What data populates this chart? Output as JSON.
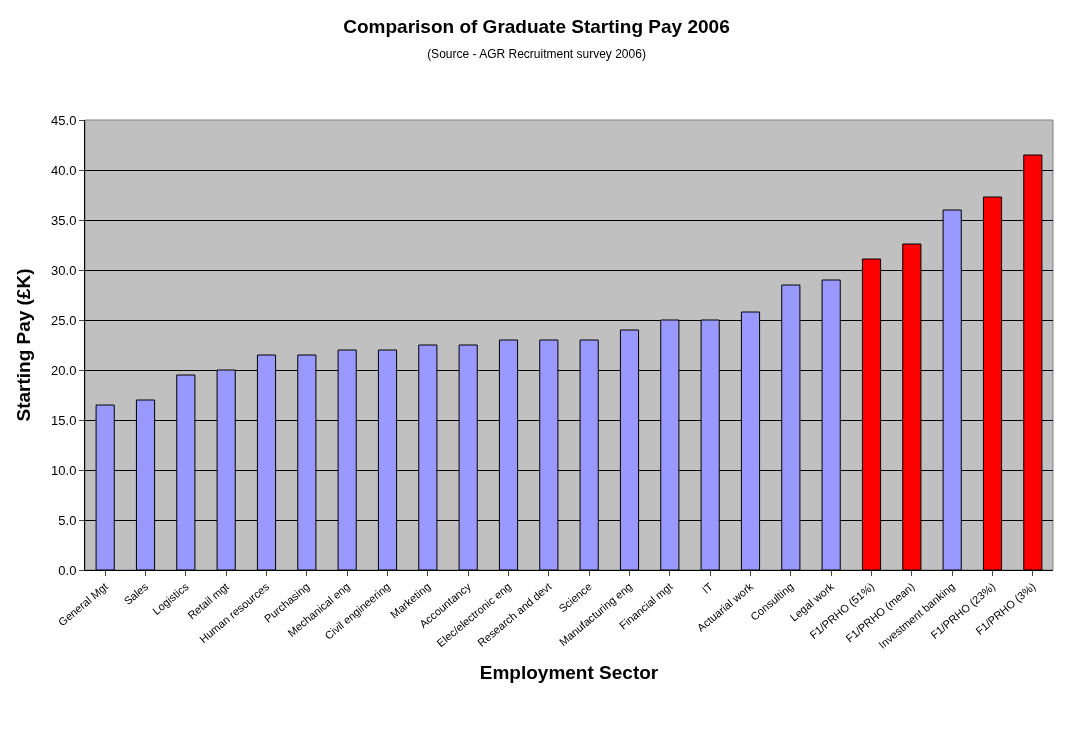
{
  "chart_data": {
    "type": "bar",
    "title": "Comparison of Graduate Starting Pay 2006",
    "subtitle": "(Source - AGR Recruitment survey 2006)",
    "xlabel": "Employment Sector",
    "ylabel": "Starting Pay (£K)",
    "categories": [
      "General Mgt",
      "Sales",
      "Logistics",
      "Retail mgt",
      "Human resources",
      "Purchasing",
      "Mechanical eng",
      "Civil engineering",
      "Marketing",
      "Accountancy",
      "Elec/electronic eng",
      "Research and devt",
      "Science",
      "Manufacturing eng",
      "Financial mgt",
      "IT",
      "Actuarial work",
      "Consulting",
      "Legal work",
      "F1/PRHO (51%)",
      "F1/PRHO (mean)",
      "Investment banking",
      "F1/PRHO (23%)",
      "F1/PRHO (3%)"
    ],
    "values": [
      16.5,
      17,
      19.5,
      20,
      21.5,
      21.5,
      22,
      22,
      22.5,
      22.5,
      23,
      23,
      23,
      24,
      25,
      25,
      25.8,
      28.5,
      29,
      31.1,
      32.6,
      36,
      37.3,
      41.5
    ],
    "colors": [
      "#9999ff",
      "#9999ff",
      "#9999ff",
      "#9999ff",
      "#9999ff",
      "#9999ff",
      "#9999ff",
      "#9999ff",
      "#9999ff",
      "#9999ff",
      "#9999ff",
      "#9999ff",
      "#9999ff",
      "#9999ff",
      "#9999ff",
      "#9999ff",
      "#9999ff",
      "#9999ff",
      "#9999ff",
      "#ff0000",
      "#ff0000",
      "#9999ff",
      "#ff0000",
      "#ff0000"
    ],
    "ylim": [
      0,
      45
    ],
    "yticks": [
      {
        "value": 0,
        "label": "0.0"
      },
      {
        "value": 5,
        "label": "5.0"
      },
      {
        "value": 10,
        "label": "10.0"
      },
      {
        "value": 15,
        "label": "15.0"
      },
      {
        "value": 20,
        "label": "20.0"
      },
      {
        "value": 25,
        "label": "25.0"
      },
      {
        "value": 30,
        "label": "30.0"
      },
      {
        "value": 35,
        "label": "35.0"
      },
      {
        "value": 40,
        "label": "40.0"
      },
      {
        "value": 45,
        "label": "45.0"
      }
    ],
    "grid": "y"
  }
}
